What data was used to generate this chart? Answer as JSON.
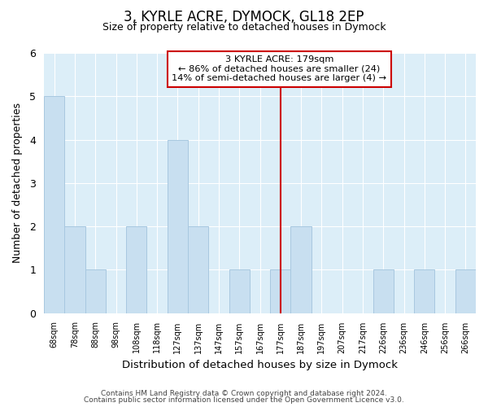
{
  "title": "3, KYRLE ACRE, DYMOCK, GL18 2EP",
  "subtitle": "Size of property relative to detached houses in Dymock",
  "xlabel": "Distribution of detached houses by size in Dymock",
  "ylabel": "Number of detached properties",
  "bar_labels": [
    "68sqm",
    "78sqm",
    "88sqm",
    "98sqm",
    "108sqm",
    "118sqm",
    "127sqm",
    "137sqm",
    "147sqm",
    "157sqm",
    "167sqm",
    "177sqm",
    "187sqm",
    "197sqm",
    "207sqm",
    "217sqm",
    "226sqm",
    "236sqm",
    "246sqm",
    "256sqm",
    "266sqm"
  ],
  "bar_heights": [
    5,
    2,
    1,
    0,
    2,
    0,
    4,
    2,
    0,
    1,
    0,
    1,
    2,
    0,
    0,
    0,
    1,
    0,
    1,
    0,
    1
  ],
  "bar_color": "#c8dff0",
  "bar_edge_color": "#a8c8e0",
  "vline_index": 11,
  "vline_color": "#cc0000",
  "ylim": [
    0,
    6
  ],
  "yticks": [
    0,
    1,
    2,
    3,
    4,
    5,
    6
  ],
  "annotation_title": "3 KYRLE ACRE: 179sqm",
  "annotation_line1": "← 86% of detached houses are smaller (24)",
  "annotation_line2": "14% of semi-detached houses are larger (4) →",
  "annotation_box_color": "#ffffff",
  "annotation_box_edge": "#cc0000",
  "footer1": "Contains HM Land Registry data © Crown copyright and database right 2024.",
  "footer2": "Contains public sector information licensed under the Open Government Licence v3.0.",
  "bg_color": "#ffffff",
  "plot_bg_color": "#dceef8",
  "grid_color": "#ffffff"
}
